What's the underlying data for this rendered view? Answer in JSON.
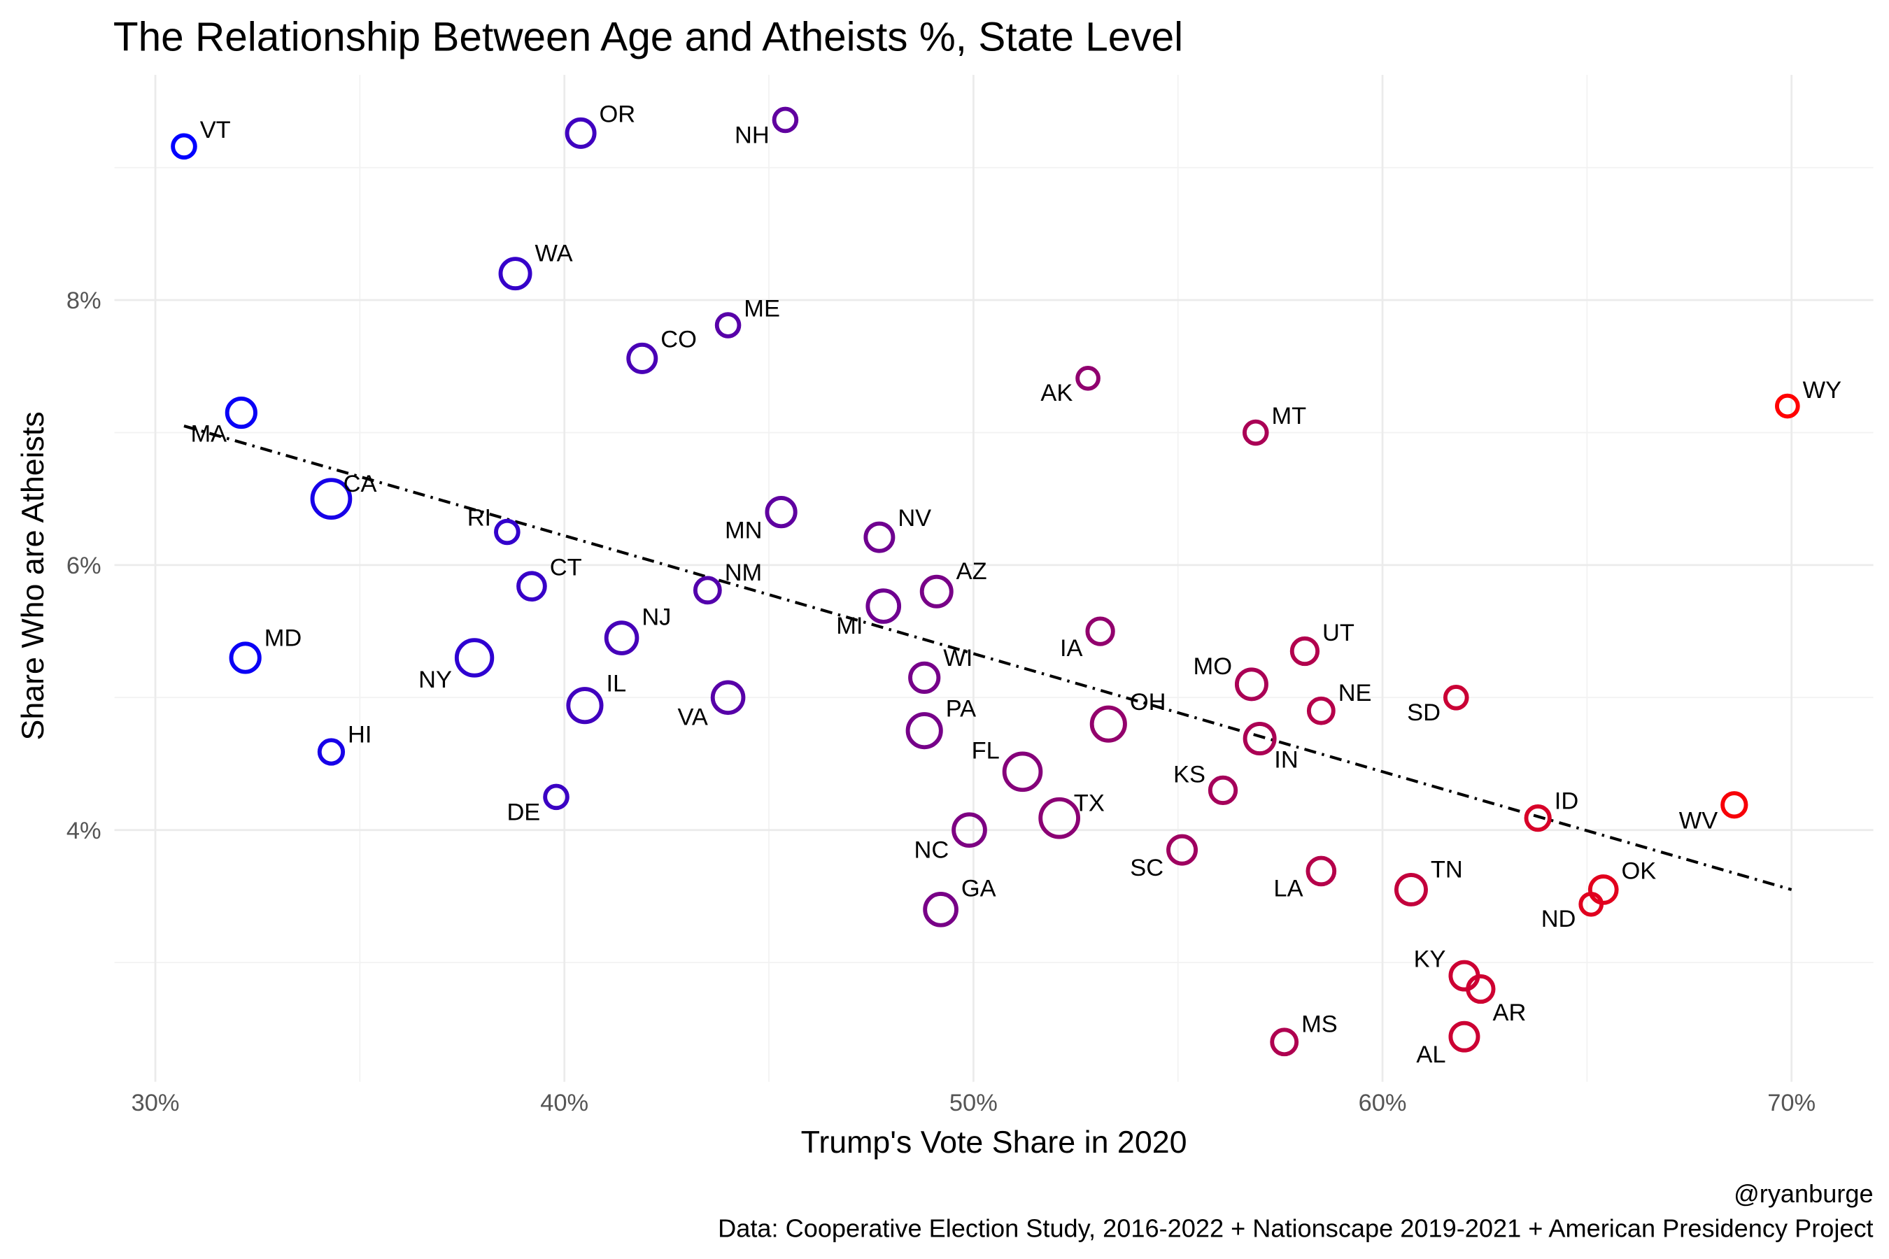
{
  "chart_data": {
    "type": "scatter",
    "title": "The Relationship Between Age and Atheists %, State Level",
    "xlabel": "Trump's Vote Share in 2020",
    "ylabel": "Share Who are Atheists",
    "xlim": [
      29,
      72
    ],
    "ylim": [
      2.1,
      9.7
    ],
    "x_ticks": [
      30,
      40,
      50,
      60,
      70
    ],
    "x_tick_labels": [
      "30%",
      "40%",
      "50%",
      "60%",
      "70%"
    ],
    "y_ticks": [
      4,
      6,
      8
    ],
    "y_tick_labels": [
      "4%",
      "6%",
      "8%"
    ],
    "grid": true,
    "legend": "none",
    "color_scale": {
      "low": "#0000FF",
      "high": "#FF0000",
      "by": "x"
    },
    "trend_line": {
      "style": "dotdash",
      "color": "#000000",
      "x": [
        30.7,
        70.0
      ],
      "y": [
        7.05,
        3.55
      ]
    },
    "points": [
      {
        "label": "VT",
        "x": 30.7,
        "y": 9.16,
        "size": 1
      },
      {
        "label": "OR",
        "x": 40.4,
        "y": 9.26,
        "size": 2
      },
      {
        "label": "NH",
        "x": 45.4,
        "y": 9.36,
        "size": 1
      },
      {
        "label": "WA",
        "x": 38.8,
        "y": 8.2,
        "size": 2.5
      },
      {
        "label": "ME",
        "x": 44.0,
        "y": 7.81,
        "size": 1
      },
      {
        "label": "CO",
        "x": 41.9,
        "y": 7.56,
        "size": 2
      },
      {
        "label": "AK",
        "x": 52.8,
        "y": 7.41,
        "size": 0.8
      },
      {
        "label": "WY",
        "x": 69.9,
        "y": 7.2,
        "size": 0.8
      },
      {
        "label": "MA",
        "x": 32.1,
        "y": 7.15,
        "size": 2.2
      },
      {
        "label": "MT",
        "x": 56.9,
        "y": 7.0,
        "size": 1
      },
      {
        "label": "CA",
        "x": 34.3,
        "y": 6.5,
        "size": 5
      },
      {
        "label": "RI",
        "x": 38.6,
        "y": 6.25,
        "size": 1
      },
      {
        "label": "MN",
        "x": 45.3,
        "y": 6.4,
        "size": 2.2
      },
      {
        "label": "NV",
        "x": 47.7,
        "y": 6.21,
        "size": 2
      },
      {
        "label": "CT",
        "x": 39.2,
        "y": 5.84,
        "size": 1.8
      },
      {
        "label": "NM",
        "x": 43.5,
        "y": 5.81,
        "size": 1.4
      },
      {
        "label": "AZ",
        "x": 49.1,
        "y": 5.8,
        "size": 2.5
      },
      {
        "label": "MI",
        "x": 47.8,
        "y": 5.69,
        "size": 3
      },
      {
        "label": "IA",
        "x": 53.1,
        "y": 5.5,
        "size": 1.6
      },
      {
        "label": "NJ",
        "x": 41.4,
        "y": 5.45,
        "size": 2.8
      },
      {
        "label": "UT",
        "x": 58.1,
        "y": 5.35,
        "size": 1.6
      },
      {
        "label": "MD",
        "x": 32.2,
        "y": 5.3,
        "size": 2.2
      },
      {
        "label": "NY",
        "x": 37.8,
        "y": 5.3,
        "size": 4.2
      },
      {
        "label": "WI",
        "x": 48.8,
        "y": 5.15,
        "size": 2.2
      },
      {
        "label": "MO",
        "x": 56.8,
        "y": 5.1,
        "size": 2.5
      },
      {
        "label": "SD",
        "x": 61.8,
        "y": 5.0,
        "size": 0.9
      },
      {
        "label": "VA",
        "x": 44.0,
        "y": 5.0,
        "size": 2.8
      },
      {
        "label": "IL",
        "x": 40.5,
        "y": 4.94,
        "size": 3.5
      },
      {
        "label": "NE",
        "x": 58.5,
        "y": 4.9,
        "size": 1.4
      },
      {
        "label": "OH",
        "x": 53.3,
        "y": 4.8,
        "size": 3.5
      },
      {
        "label": "PA",
        "x": 48.8,
        "y": 4.75,
        "size": 3.5
      },
      {
        "label": "IN",
        "x": 57.0,
        "y": 4.69,
        "size": 2.5
      },
      {
        "label": "HI",
        "x": 34.3,
        "y": 4.59,
        "size": 1.2
      },
      {
        "label": "FL",
        "x": 51.2,
        "y": 4.44,
        "size": 4.5
      },
      {
        "label": "KS",
        "x": 56.1,
        "y": 4.3,
        "size": 1.6
      },
      {
        "label": "DE",
        "x": 39.8,
        "y": 4.25,
        "size": 1
      },
      {
        "label": "TX",
        "x": 52.1,
        "y": 4.09,
        "size": 5
      },
      {
        "label": "ID",
        "x": 63.8,
        "y": 4.09,
        "size": 1.2
      },
      {
        "label": "WV",
        "x": 68.6,
        "y": 4.19,
        "size": 1.2
      },
      {
        "label": "NC",
        "x": 49.9,
        "y": 4.0,
        "size": 3
      },
      {
        "label": "SC",
        "x": 55.1,
        "y": 3.85,
        "size": 2
      },
      {
        "label": "LA",
        "x": 58.5,
        "y": 3.69,
        "size": 1.8
      },
      {
        "label": "TN",
        "x": 60.7,
        "y": 3.55,
        "size": 2.5
      },
      {
        "label": "OK",
        "x": 65.4,
        "y": 3.55,
        "size": 1.8
      },
      {
        "label": "ND",
        "x": 65.1,
        "y": 3.44,
        "size": 0.8
      },
      {
        "label": "GA",
        "x": 49.2,
        "y": 3.4,
        "size": 3
      },
      {
        "label": "KY",
        "x": 62.0,
        "y": 2.9,
        "size": 2
      },
      {
        "label": "AR",
        "x": 62.4,
        "y": 2.8,
        "size": 1.6
      },
      {
        "label": "AL",
        "x": 62.0,
        "y": 2.44,
        "size": 2
      },
      {
        "label": "MS",
        "x": 57.6,
        "y": 2.4,
        "size": 1.4
      }
    ]
  },
  "caption": {
    "author": "@ryanburge",
    "source": "Data: Cooperative Election Study, 2016-2022 + Nationscape 2019-2021 + American Presidency Project"
  }
}
